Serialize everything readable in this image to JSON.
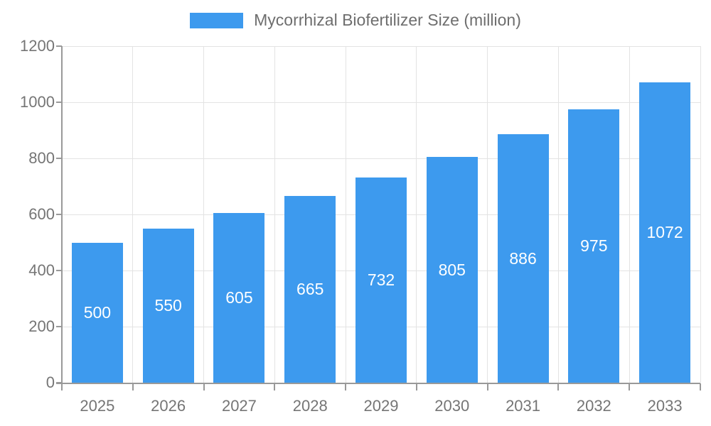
{
  "legend": {
    "label": "Mycorrhizal Biofertilizer Size (million)"
  },
  "chart_data": {
    "type": "bar",
    "title": "Mycorrhizal Biofertilizer Size (million)",
    "categories": [
      "2025",
      "2026",
      "2027",
      "2028",
      "2029",
      "2030",
      "2031",
      "2032",
      "2033"
    ],
    "values": [
      500,
      550,
      605,
      665,
      732,
      805,
      886,
      975,
      1072
    ],
    "xlabel": "",
    "ylabel": "",
    "ylim": [
      0,
      1200
    ],
    "y_ticks": [
      0,
      200,
      400,
      600,
      800,
      1000,
      1200
    ],
    "grid": true,
    "legend_position": "top",
    "bar_labels_visible": true,
    "colors": {
      "bar": "#3d9aee",
      "bar_label": "#ffffff",
      "axis_text": "#757575",
      "legend_text": "#6e6e6e",
      "grid_line": "#e3e3e3",
      "axis_line": "#999999",
      "background": "#ffffff"
    }
  }
}
